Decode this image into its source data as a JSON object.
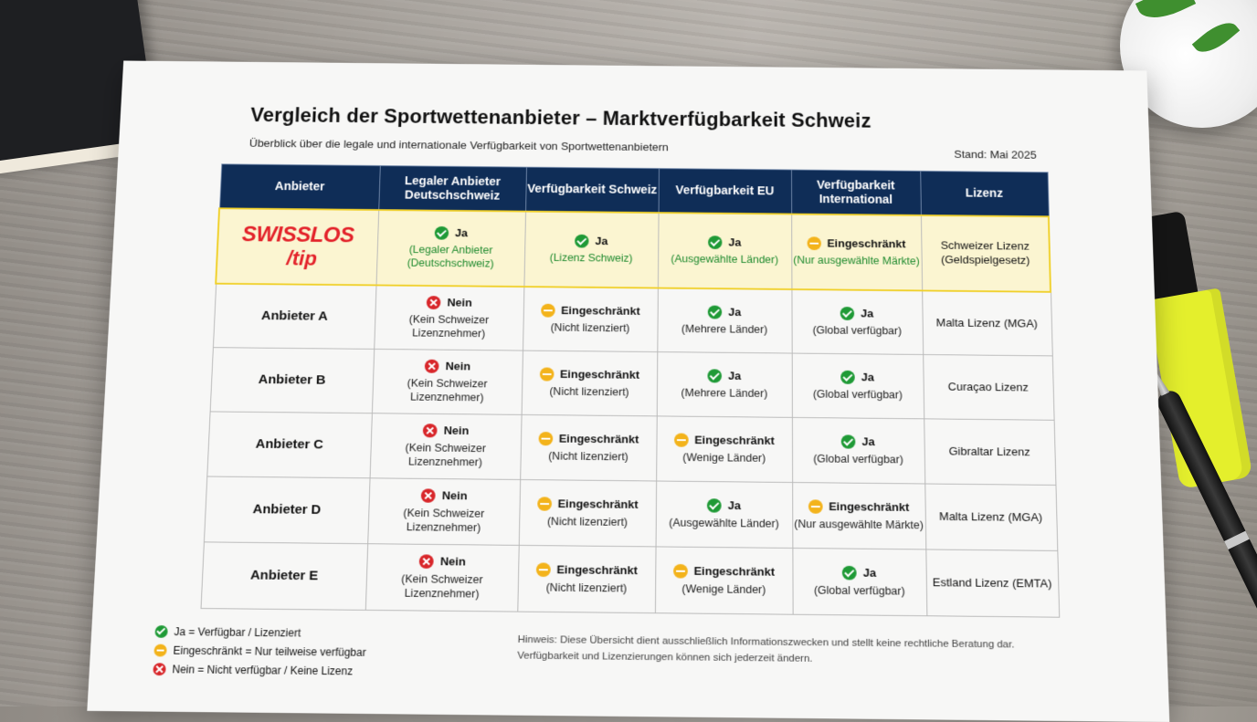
{
  "header": {
    "title": "Vergleich der Sportwettenanbieter – Marktverfügbarkeit Schweiz",
    "subtitle": "Überblick über die legale und internationale Verfügbarkeit von Sportwettenanbietern",
    "stand": "Stand: Mai 2025"
  },
  "table": {
    "columns": [
      "Anbieter",
      "Legaler Anbieter Deutschschweiz",
      "Verfügbarkeit Schweiz",
      "Verfügbarkeit EU",
      "Verfügbarkeit International",
      "Lizenz"
    ],
    "swisslos": {
      "logo_line1": "SWISSLOS",
      "logo_line2": "/tip",
      "cells": [
        {
          "status": "yes",
          "label": "Ja",
          "detail": "(Legaler Anbieter (Deutschschweiz)"
        },
        {
          "status": "yes",
          "label": "Ja",
          "detail": "(Lizenz Schweiz)"
        },
        {
          "status": "yes",
          "label": "Ja",
          "detail": "(Ausgewählte Länder)"
        },
        {
          "status": "partial",
          "label": "Eingeschränkt",
          "detail": "(Nur ausgewählte Märkte)"
        }
      ],
      "license": "Schweizer Lizenz (Geldspielgesetz)"
    },
    "rows": [
      {
        "name": "Anbieter A",
        "cells": [
          {
            "status": "no",
            "label": "Nein",
            "detail": "(Kein Schweizer Lizenznehmer)"
          },
          {
            "status": "partial",
            "label": "Eingeschränkt",
            "detail": "(Nicht lizenziert)"
          },
          {
            "status": "yes",
            "label": "Ja",
            "detail": "(Mehrere Länder)"
          },
          {
            "status": "yes",
            "label": "Ja",
            "detail": "(Global verfügbar)"
          }
        ],
        "license": "Malta Lizenz (MGA)"
      },
      {
        "name": "Anbieter B",
        "cells": [
          {
            "status": "no",
            "label": "Nein",
            "detail": "(Kein Schweizer Lizenznehmer)"
          },
          {
            "status": "partial",
            "label": "Eingeschränkt",
            "detail": "(Nicht lizenziert)"
          },
          {
            "status": "yes",
            "label": "Ja",
            "detail": "(Mehrere Länder)"
          },
          {
            "status": "yes",
            "label": "Ja",
            "detail": "(Global verfügbar)"
          }
        ],
        "license": "Curaçao Lizenz"
      },
      {
        "name": "Anbieter C",
        "cells": [
          {
            "status": "no",
            "label": "Nein",
            "detail": "(Kein Schweizer Lizenznehmer)"
          },
          {
            "status": "partial",
            "label": "Eingeschränkt",
            "detail": "(Nicht lizenziert)"
          },
          {
            "status": "partial",
            "label": "Eingeschränkt",
            "detail": "(Wenige Länder)"
          },
          {
            "status": "yes",
            "label": "Ja",
            "detail": "(Global verfügbar)"
          }
        ],
        "license": "Gibraltar Lizenz"
      },
      {
        "name": "Anbieter D",
        "cells": [
          {
            "status": "no",
            "label": "Nein",
            "detail": "(Kein Schweizer Lizenznehmer)"
          },
          {
            "status": "partial",
            "label": "Eingeschränkt",
            "detail": "(Nicht lizenziert)"
          },
          {
            "status": "yes",
            "label": "Ja",
            "detail": "(Ausgewählte Länder)"
          },
          {
            "status": "partial",
            "label": "Eingeschränkt",
            "detail": "(Nur ausgewählte Märkte)"
          }
        ],
        "license": "Malta Lizenz (MGA)"
      },
      {
        "name": "Anbieter E",
        "cells": [
          {
            "status": "no",
            "label": "Nein",
            "detail": "(Kein Schweizer Lizenznehmer)"
          },
          {
            "status": "partial",
            "label": "Eingeschränkt",
            "detail": "(Nicht lizenziert)"
          },
          {
            "status": "partial",
            "label": "Eingeschränkt",
            "detail": "(Wenige Länder)"
          },
          {
            "status": "yes",
            "label": "Ja",
            "detail": "(Global verfügbar)"
          }
        ],
        "license": "Estland Lizenz (EMTA)"
      }
    ]
  },
  "legend": [
    {
      "status": "yes",
      "text": "Ja = Verfügbar / Lizenziert"
    },
    {
      "status": "partial",
      "text": "Eingeschränkt = Nur teilweise verfügbar"
    },
    {
      "status": "no",
      "text": "Nein = Nicht verfügbar / Keine Lizenz"
    }
  ],
  "note": {
    "line1": "Hinweis: Diese Übersicht dient ausschließlich Informationszwecken und stellt keine rechtliche Beratung dar.",
    "line2": "Verfügbarkeit und Lizenzierungen können sich jederzeit ändern."
  },
  "colors": {
    "yes": "#1f9a36",
    "partial": "#f3b31b",
    "no": "#d8262a",
    "header_bg": "#0f2d57",
    "highlight": "#fbf5d1"
  }
}
